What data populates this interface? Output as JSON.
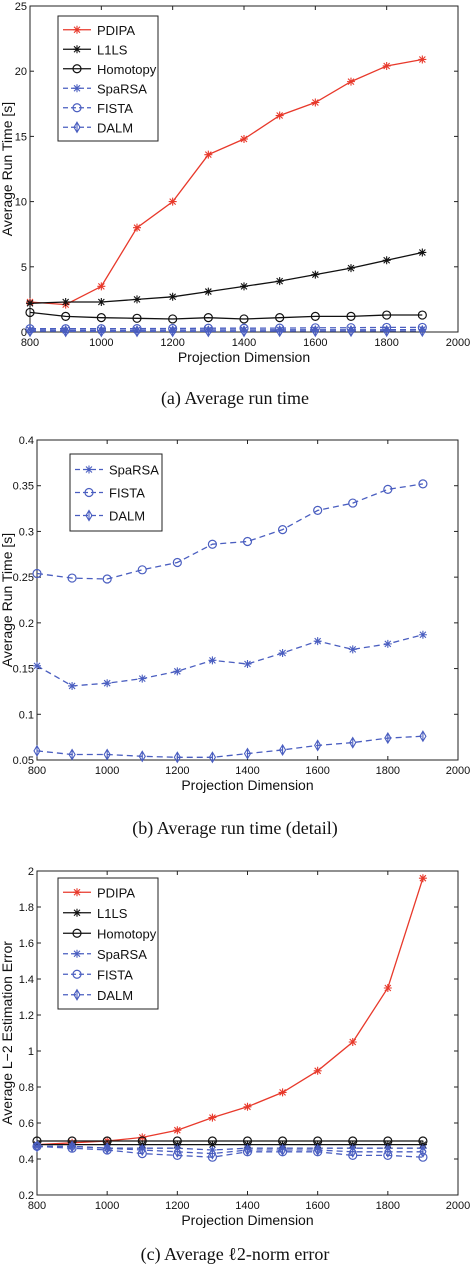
{
  "chart_data": [
    {
      "type": "line",
      "caption": "(a) Average run time",
      "xlabel": "Projection Dimension",
      "ylabel": "Average Run Time [s]",
      "xlim": [
        800,
        2000
      ],
      "ylim": [
        0,
        25
      ],
      "xticks": [
        800,
        1000,
        1200,
        1400,
        1600,
        1800,
        2000
      ],
      "yticks": [
        0,
        5,
        10,
        15,
        20,
        25
      ],
      "legend_position": "top-left",
      "grid": false,
      "x": [
        800,
        900,
        1000,
        1100,
        1200,
        1300,
        1400,
        1500,
        1600,
        1700,
        1800,
        1900
      ],
      "series": [
        {
          "name": "PDIPA",
          "color": "#e8392b",
          "marker": "star",
          "dash": "solid",
          "values": [
            2.3,
            2.1,
            3.5,
            8.0,
            10.0,
            13.6,
            14.8,
            16.6,
            17.6,
            19.2,
            20.4,
            20.9
          ]
        },
        {
          "name": "L1LS",
          "color": "#111111",
          "marker": "star",
          "dash": "solid",
          "values": [
            2.2,
            2.3,
            2.3,
            2.5,
            2.7,
            3.1,
            3.5,
            3.9,
            4.4,
            4.9,
            5.5,
            6.1
          ]
        },
        {
          "name": "Homotopy",
          "color": "#111111",
          "marker": "circle",
          "dash": "solid",
          "values": [
            1.5,
            1.2,
            1.1,
            1.05,
            1.0,
            1.1,
            1.0,
            1.1,
            1.2,
            1.2,
            1.3,
            1.3
          ]
        },
        {
          "name": "SpaRSA",
          "color": "#4a5ec0",
          "marker": "star",
          "dash": "dashed",
          "values": [
            0.15,
            0.13,
            0.13,
            0.14,
            0.15,
            0.16,
            0.16,
            0.17,
            0.18,
            0.17,
            0.18,
            0.19
          ]
        },
        {
          "name": "FISTA",
          "color": "#4a5ec0",
          "marker": "circle",
          "dash": "dashed",
          "values": [
            0.25,
            0.25,
            0.25,
            0.26,
            0.27,
            0.29,
            0.29,
            0.3,
            0.32,
            0.33,
            0.35,
            0.35
          ]
        },
        {
          "name": "DALM",
          "color": "#4a5ec0",
          "marker": "diamond",
          "dash": "dashed",
          "values": [
            0.06,
            0.056,
            0.056,
            0.054,
            0.053,
            0.053,
            0.057,
            0.061,
            0.066,
            0.069,
            0.074,
            0.076
          ]
        }
      ]
    },
    {
      "type": "line",
      "caption": "(b) Average run time (detail)",
      "xlabel": "Projection Dimension",
      "ylabel": "Average Run Time [s]",
      "xlim": [
        800,
        2000
      ],
      "ylim": [
        0.05,
        0.4
      ],
      "xticks": [
        800,
        1000,
        1200,
        1400,
        1600,
        1800,
        2000
      ],
      "yticks": [
        0.05,
        0.1,
        0.15,
        0.2,
        0.25,
        0.3,
        0.35,
        0.4
      ],
      "legend_position": "top-left",
      "grid": false,
      "x": [
        800,
        900,
        1000,
        1100,
        1200,
        1300,
        1400,
        1500,
        1600,
        1700,
        1800,
        1900
      ],
      "series": [
        {
          "name": "SpaRSA",
          "color": "#4a5ec0",
          "marker": "star",
          "dash": "dashed",
          "values": [
            0.153,
            0.131,
            0.134,
            0.139,
            0.147,
            0.159,
            0.155,
            0.167,
            0.18,
            0.171,
            0.177,
            0.187
          ]
        },
        {
          "name": "FISTA",
          "color": "#4a5ec0",
          "marker": "circle",
          "dash": "dashed",
          "values": [
            0.254,
            0.249,
            0.248,
            0.258,
            0.266,
            0.286,
            0.289,
            0.302,
            0.323,
            0.331,
            0.346,
            0.352
          ]
        },
        {
          "name": "DALM",
          "color": "#4a5ec0",
          "marker": "diamond",
          "dash": "dashed",
          "values": [
            0.06,
            0.056,
            0.056,
            0.054,
            0.053,
            0.053,
            0.057,
            0.061,
            0.066,
            0.069,
            0.074,
            0.076
          ]
        }
      ]
    },
    {
      "type": "line",
      "caption": "(c) Average ℓ2-norm error",
      "xlabel": "Projection Dimension",
      "ylabel": "Average L−2 Estimation Error",
      "xlim": [
        800,
        2000
      ],
      "ylim": [
        0.2,
        2
      ],
      "xticks": [
        800,
        1000,
        1200,
        1400,
        1600,
        1800,
        2000
      ],
      "yticks": [
        0.2,
        0.4,
        0.6,
        0.8,
        1,
        1.2,
        1.4,
        1.6,
        1.8,
        2
      ],
      "legend_position": "top-left",
      "grid": false,
      "x": [
        800,
        900,
        1000,
        1100,
        1200,
        1300,
        1400,
        1500,
        1600,
        1700,
        1800,
        1900
      ],
      "series": [
        {
          "name": "PDIPA",
          "color": "#e8392b",
          "marker": "star",
          "dash": "solid",
          "values": [
            0.48,
            0.49,
            0.5,
            0.52,
            0.56,
            0.63,
            0.69,
            0.77,
            0.89,
            1.05,
            1.35,
            1.96
          ]
        },
        {
          "name": "L1LS",
          "color": "#111111",
          "marker": "star",
          "dash": "solid",
          "values": [
            0.48,
            0.48,
            0.48,
            0.48,
            0.48,
            0.48,
            0.48,
            0.48,
            0.48,
            0.48,
            0.48,
            0.48
          ]
        },
        {
          "name": "Homotopy",
          "color": "#111111",
          "marker": "circle",
          "dash": "solid",
          "values": [
            0.5,
            0.5,
            0.5,
            0.5,
            0.5,
            0.5,
            0.5,
            0.5,
            0.5,
            0.5,
            0.5,
            0.5
          ]
        },
        {
          "name": "SpaRSA",
          "color": "#4a5ec0",
          "marker": "star",
          "dash": "dashed",
          "values": [
            0.47,
            0.47,
            0.46,
            0.46,
            0.46,
            0.45,
            0.46,
            0.46,
            0.46,
            0.46,
            0.46,
            0.46
          ]
        },
        {
          "name": "FISTA",
          "color": "#4a5ec0",
          "marker": "circle",
          "dash": "dashed",
          "values": [
            0.47,
            0.46,
            0.45,
            0.43,
            0.42,
            0.41,
            0.44,
            0.44,
            0.44,
            0.42,
            0.42,
            0.41
          ]
        },
        {
          "name": "DALM",
          "color": "#4a5ec0",
          "marker": "diamond",
          "dash": "dashed",
          "values": [
            0.47,
            0.47,
            0.46,
            0.45,
            0.44,
            0.43,
            0.45,
            0.45,
            0.45,
            0.44,
            0.44,
            0.44
          ]
        }
      ]
    }
  ]
}
